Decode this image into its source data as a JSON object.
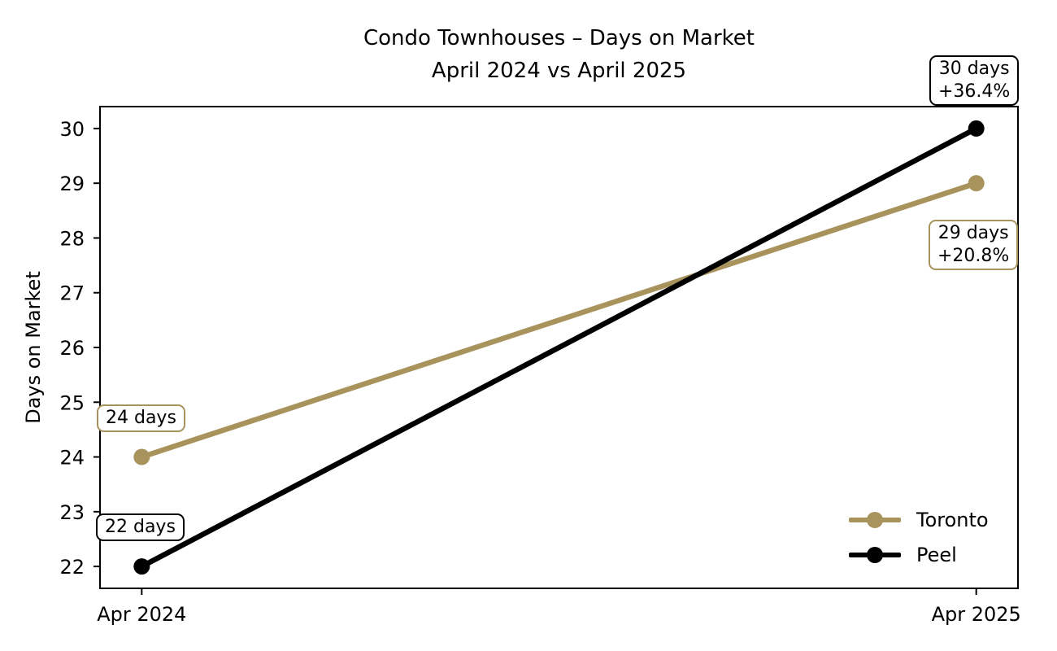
{
  "title": {
    "line1": "Condo Townhouses – Days on Market",
    "line2": "April 2024 vs April 2025"
  },
  "chart_data": {
    "type": "line",
    "title": "Condo Townhouses – Days on Market\nApril 2024 vs April 2025",
    "x": [
      "Apr 2024",
      "Apr 2025"
    ],
    "series": [
      {
        "name": "Toronto",
        "values": [
          24,
          29
        ],
        "color": "#a8935c"
      },
      {
        "name": "Peel",
        "values": [
          22,
          30
        ],
        "color": "#000000"
      }
    ],
    "xlabel": "",
    "ylabel": "Days on Market",
    "yticks": [
      22,
      23,
      24,
      25,
      26,
      27,
      28,
      29,
      30
    ],
    "ylim": [
      21.6,
      30.4
    ],
    "xlim": [
      -0.05,
      1.05
    ],
    "grid": false,
    "legend_position": "lower right",
    "annotations": [
      {
        "point": "Toronto Apr 2024",
        "line1": "24 days",
        "line2": "",
        "border": "#a8935c"
      },
      {
        "point": "Peel Apr 2024",
        "line1": "22 days",
        "line2": "",
        "border": "#000000"
      },
      {
        "point": "Peel Apr 2025",
        "line1": "30 days",
        "line2": "+36.4%",
        "border": "#000000"
      },
      {
        "point": "Toronto Apr 2025",
        "line1": "29 days",
        "line2": "+20.8%",
        "border": "#a8935c"
      }
    ]
  },
  "legend": {
    "items": [
      {
        "label": "Toronto",
        "color": "#a8935c"
      },
      {
        "label": "Peel",
        "color": "#000000"
      }
    ]
  }
}
